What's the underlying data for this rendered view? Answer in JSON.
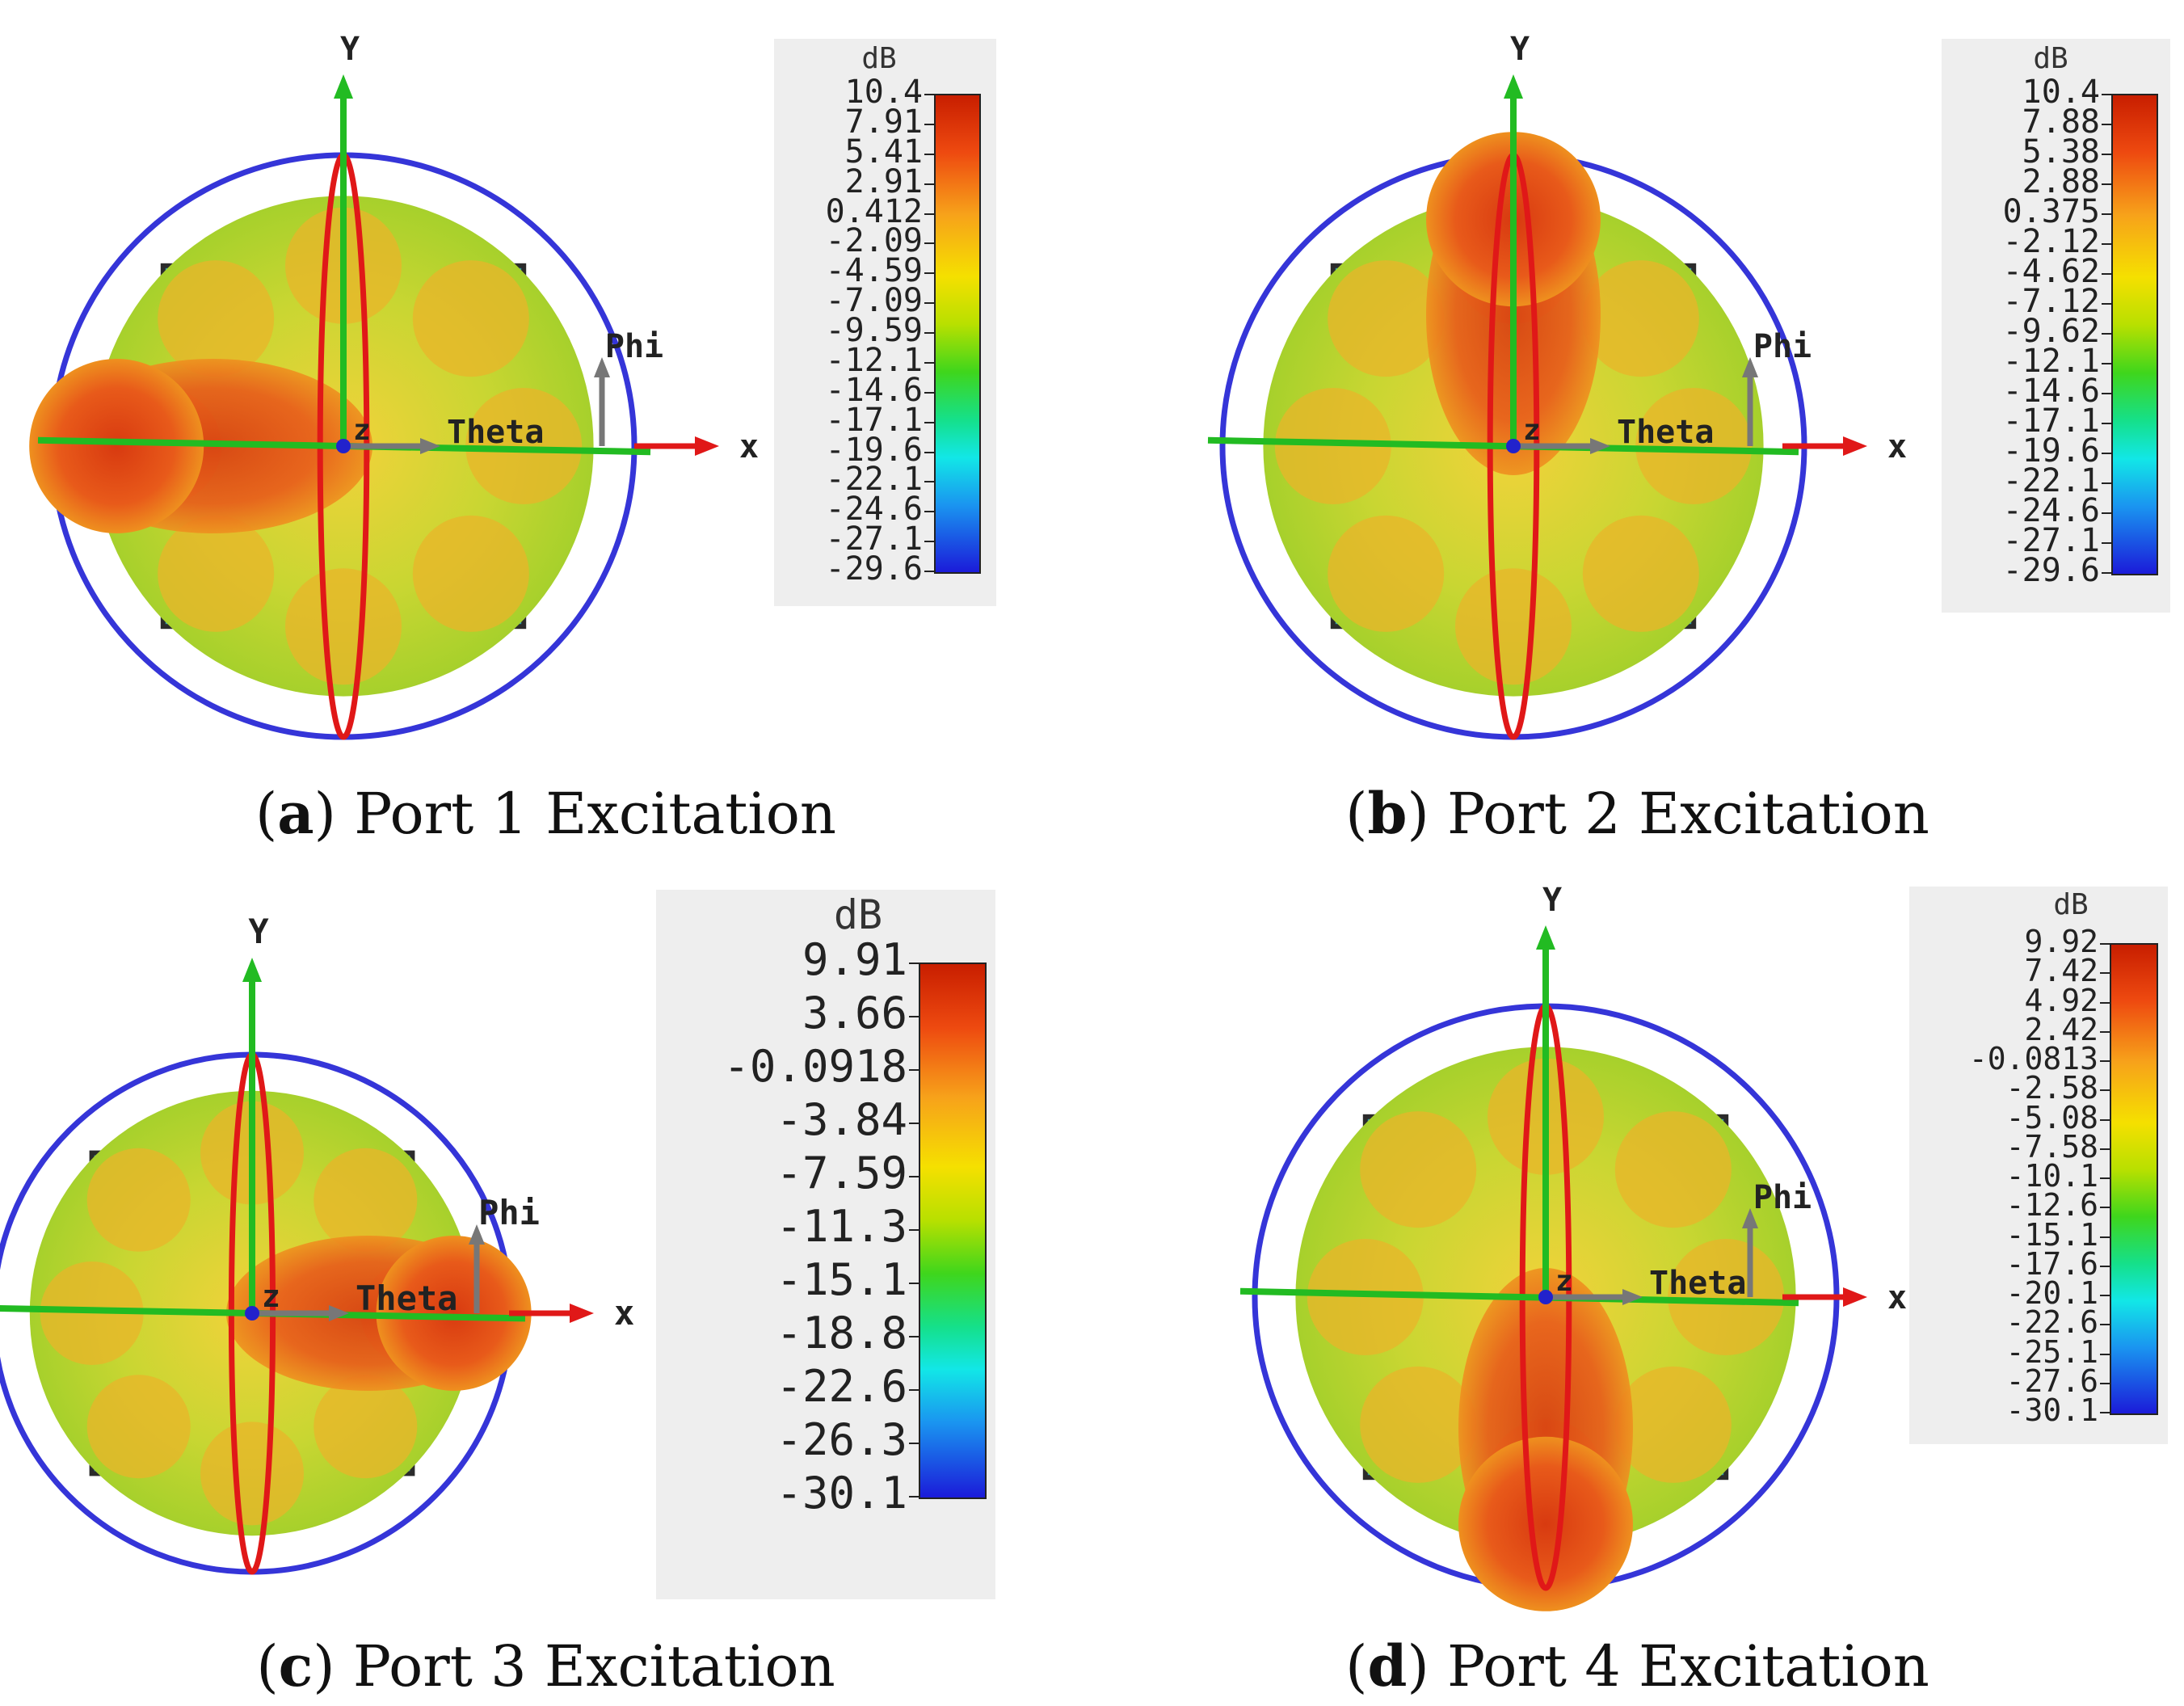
{
  "figure": {
    "panels": [
      {
        "id": "a",
        "caption_letter": "a",
        "caption_text": "Port 1 Excitation",
        "peak_direction": "-x",
        "axis_labels": {
          "y": "Y",
          "x": "x",
          "z": "z",
          "phi": "Phi",
          "theta": "Theta"
        },
        "colorbar": {
          "unit": "dB",
          "ticks": [
            "10.4",
            "7.91",
            "5.41",
            "2.91",
            "0.412",
            "-2.09",
            "-4.59",
            "-7.09",
            "-9.59",
            "-12.1",
            "-14.6",
            "-17.1",
            "-19.6",
            "-22.1",
            "-24.6",
            "-27.1",
            "-29.6"
          ]
        }
      },
      {
        "id": "b",
        "caption_letter": "b",
        "caption_text": "Port 2 Excitation",
        "peak_direction": "+y",
        "axis_labels": {
          "y": "Y",
          "x": "x",
          "z": "z",
          "phi": "Phi",
          "theta": "Theta"
        },
        "colorbar": {
          "unit": "dB",
          "ticks": [
            "10.4",
            "7.88",
            "5.38",
            "2.88",
            "0.375",
            "-2.12",
            "-4.62",
            "-7.12",
            "-9.62",
            "-12.1",
            "-14.6",
            "-17.1",
            "-19.6",
            "-22.1",
            "-24.6",
            "-27.1",
            "-29.6"
          ]
        }
      },
      {
        "id": "c",
        "caption_letter": "c",
        "caption_text": "Port 3 Excitation",
        "peak_direction": "+x",
        "axis_labels": {
          "y": "Y",
          "x": "x",
          "z": "z",
          "phi": "Phi",
          "theta": "Theta"
        },
        "colorbar": {
          "unit": "dB",
          "ticks": [
            "9.91",
            "3.66",
            "-0.0918",
            "-3.84",
            "-7.59",
            "-11.3",
            "-15.1",
            "-18.8",
            "-22.6",
            "-26.3",
            "-30.1"
          ]
        }
      },
      {
        "id": "d",
        "caption_letter": "d",
        "caption_text": "Port 4 Excitation",
        "peak_direction": "-y",
        "axis_labels": {
          "y": "Y",
          "x": "x",
          "z": "z",
          "phi": "Phi",
          "theta": "Theta"
        },
        "colorbar": {
          "unit": "dB",
          "ticks": [
            "9.92",
            "7.42",
            "4.92",
            "2.42",
            "-0.0813",
            "-2.58",
            "-5.08",
            "-7.58",
            "-10.1",
            "-12.6",
            "-15.1",
            "-17.6",
            "-20.1",
            "-22.6",
            "-25.1",
            "-27.6",
            "-30.1"
          ]
        }
      }
    ]
  }
}
